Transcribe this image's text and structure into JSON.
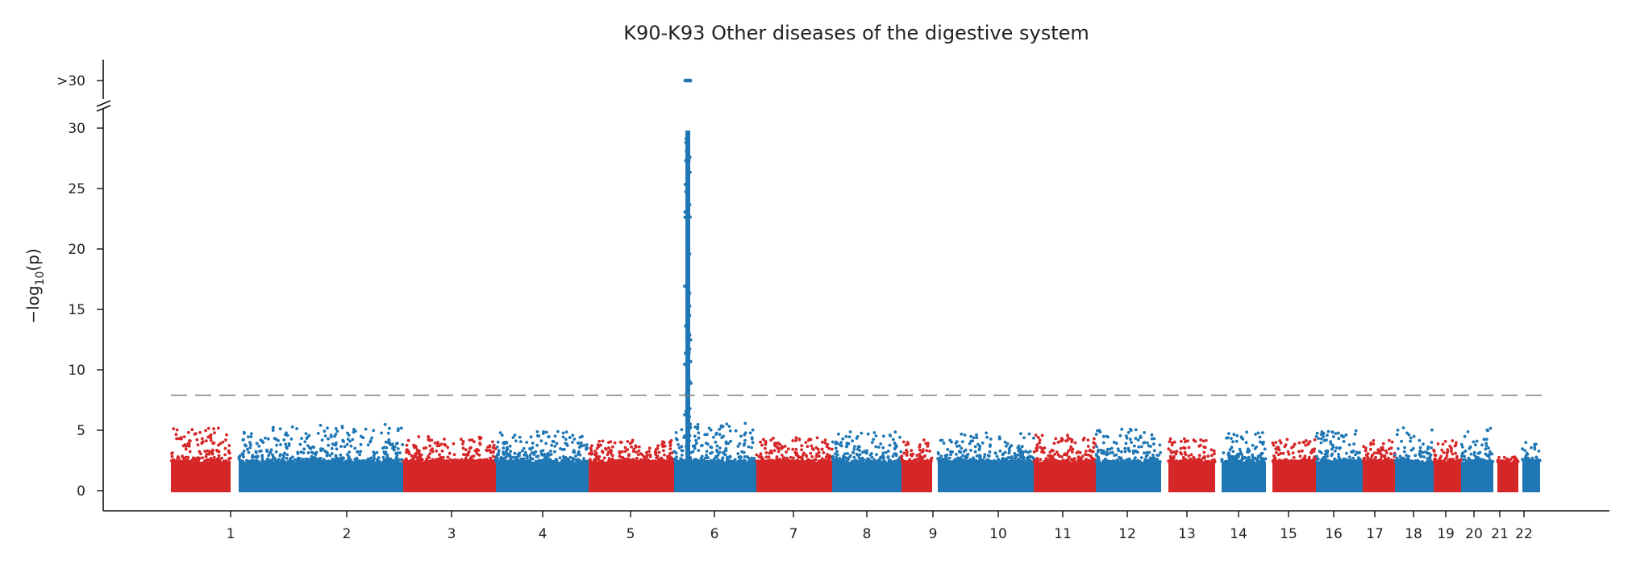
{
  "chart_data": {
    "type": "scatter",
    "title": "K90-K93 Other diseases of the digestive system",
    "ylabel": "−log",
    "ylabel_subscript": "10",
    "ylabel_suffix": "(p)",
    "ylim": [
      -1.6,
      31
    ],
    "yticks": [
      0,
      5,
      10,
      15,
      20,
      25,
      30
    ],
    "ytick_labels": [
      "0",
      "5",
      "10",
      "15",
      "20",
      "25",
      "30"
    ],
    "broken_axis_label": ">30",
    "significance_threshold": 7.9,
    "chromosomes": [
      "1",
      "2",
      "3",
      "4",
      "5",
      "6",
      "7",
      "8",
      "9",
      "10",
      "11",
      "12",
      "13",
      "14",
      "15",
      "16",
      "17",
      "18",
      "19",
      "20",
      "21",
      "22"
    ],
    "colors": {
      "odd": "#d62728",
      "even": "#1f77b4",
      "threshold": "#808080"
    },
    "baseline_band_max": 2.4,
    "typical_peaks": [
      5.2,
      5.5,
      4.5,
      4.9,
      4.2,
      5.6,
      4.4,
      4.9,
      4.2,
      4.8,
      4.6,
      5.1,
      4.3,
      4.9,
      4.3,
      5.0,
      4.2,
      5.3,
      4.2,
      5.3,
      2.8,
      4.1
    ],
    "highlighted_locus": {
      "chromosome": "6",
      "max_below_30": 29.8,
      "points_above_30": 3
    }
  }
}
